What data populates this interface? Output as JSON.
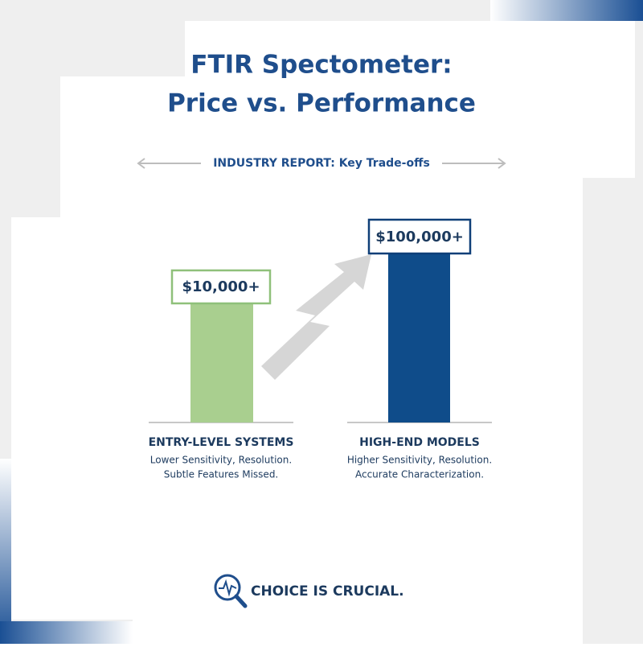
{
  "header": {
    "title_lines": [
      "FTIR Spectometer:",
      "Price vs. Performance"
    ],
    "subtitle": "INDUSTRY REPORT: Key Trade-offs"
  },
  "columns": [
    {
      "price": "$10,000+",
      "heading": "ENTRY-LEVEL SYSTEMS",
      "lines": [
        "Lower Sensitivity, Resolution.",
        "Subtle Features Missed."
      ]
    },
    {
      "price": "$100,000+",
      "heading": "HIGH-END MODELS",
      "lines": [
        "Higher Sensitivity, Resolution.",
        "Accurate Characterization."
      ]
    }
  ],
  "footer": {
    "text": "CHOICE IS CRUCIAL."
  }
}
